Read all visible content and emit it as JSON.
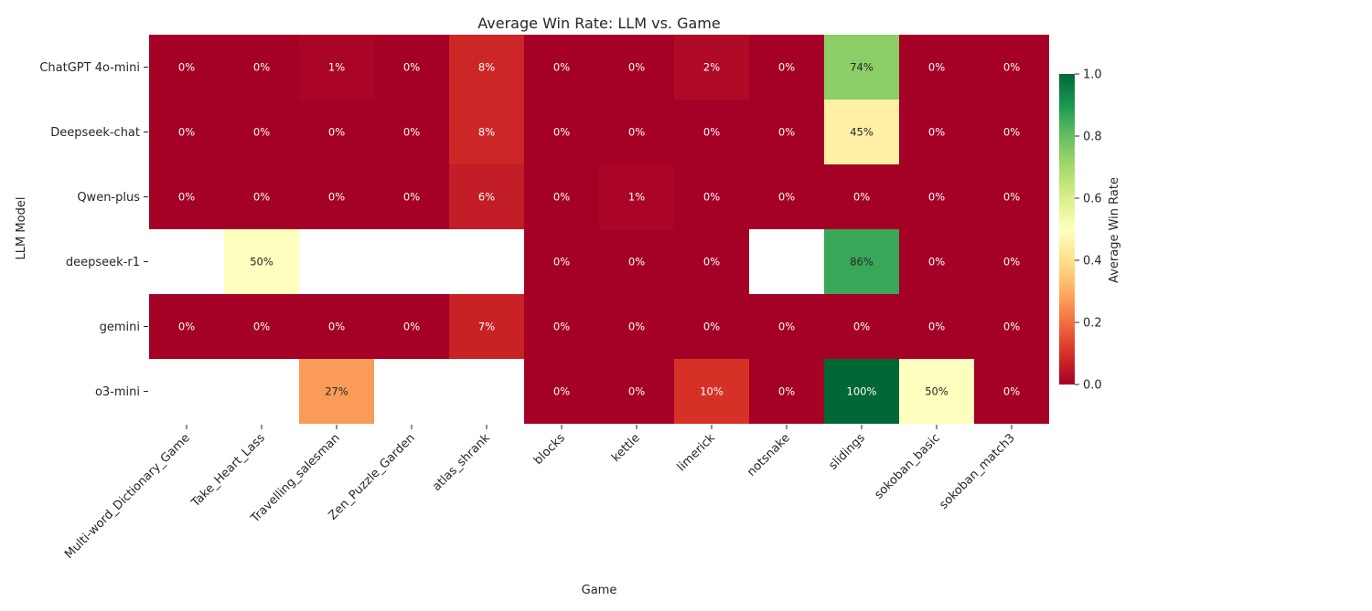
{
  "chart_data": {
    "type": "heatmap",
    "title": "Average Win Rate: LLM vs. Game",
    "xlabel": "Game",
    "ylabel": "LLM Model",
    "x_categories": [
      "Multi-word_Dictionary_Game",
      "Take_Heart_Lass",
      "Travelling_salesman",
      "Zen_Puzzle_Garden",
      "atlas_shrank",
      "blocks",
      "kettle",
      "limerick",
      "notsnake",
      "slidings",
      "sokoban_basic",
      "sokoban_match3"
    ],
    "y_categories": [
      "ChatGPT 4o-mini",
      "Deepseek-chat",
      "Qwen-plus",
      "deepseek-r1",
      "gemini",
      "o3-mini"
    ],
    "values": [
      [
        0,
        0,
        0.01,
        0,
        0.08,
        0,
        0,
        0.02,
        0,
        0.74,
        0,
        0
      ],
      [
        0,
        0,
        0,
        0,
        0.08,
        0,
        0,
        0,
        0,
        0.45,
        0,
        0
      ],
      [
        0,
        0,
        0,
        0,
        0.06,
        0,
        0.01,
        0,
        0,
        0,
        0,
        0
      ],
      [
        null,
        0.5,
        null,
        null,
        null,
        0,
        0,
        0,
        null,
        0.86,
        0,
        0
      ],
      [
        0,
        0,
        0,
        0,
        0.07,
        0,
        0,
        0,
        0,
        0,
        0,
        0
      ],
      [
        null,
        null,
        0.27,
        null,
        null,
        0,
        0,
        0.1,
        0,
        1.0,
        0.5,
        0
      ]
    ],
    "value_format": "percent",
    "colormap": "RdYlGn",
    "colorbar": {
      "label": "Average Win Rate",
      "range": [
        0,
        1
      ],
      "ticks": [
        "0.0",
        "0.2",
        "0.4",
        "0.6",
        "0.8",
        "1.0"
      ]
    },
    "missing": "blank"
  }
}
